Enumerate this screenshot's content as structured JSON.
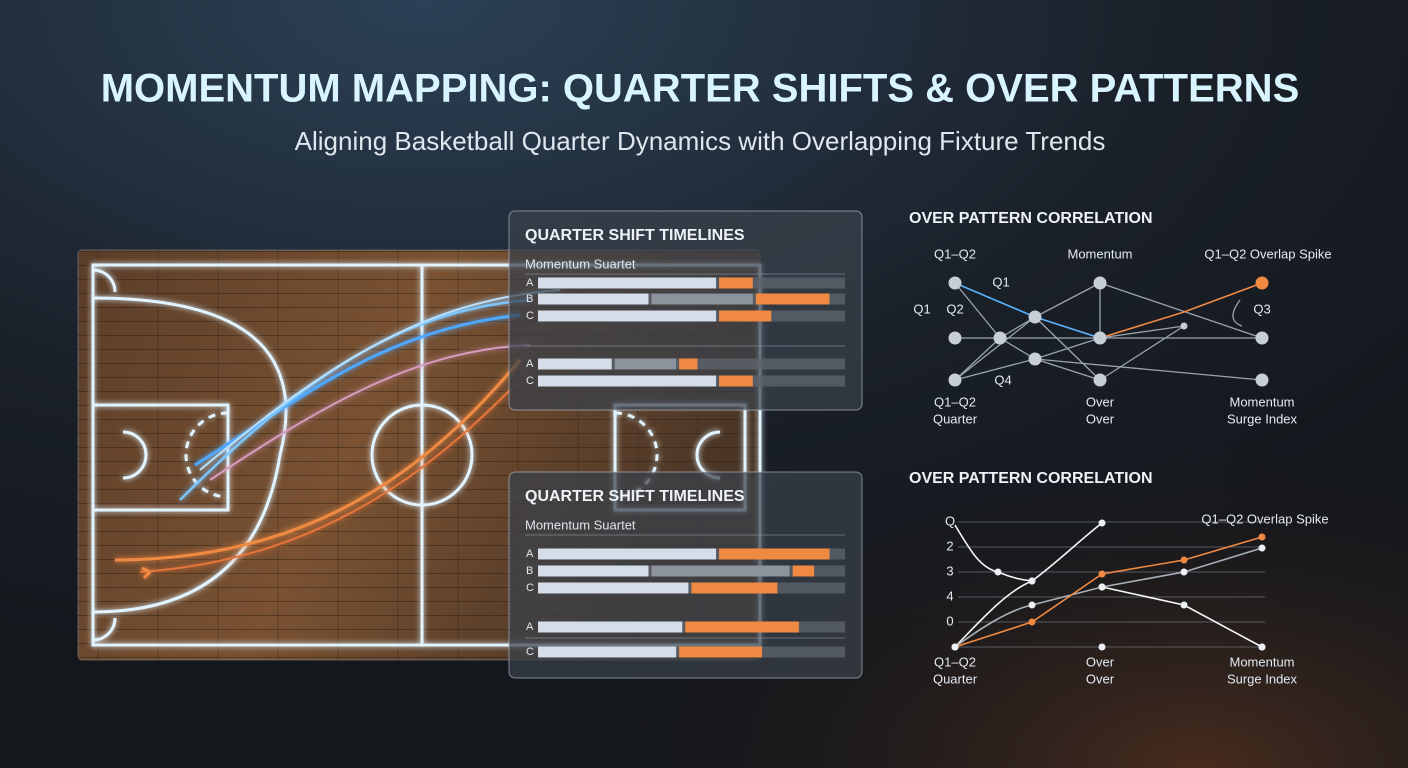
{
  "header": {
    "title": "MOMENTUM MAPPING: QUARTER SHIFTS & OVER PATTERNS",
    "subtitle": "Aligning Basketball Quarter Dynamics with Overlapping Fixture Trends"
  },
  "timelines": [
    {
      "title": "QUARTER SHIFT TIMELINES",
      "subtitle": "Momentum Suartet",
      "groups": [
        [
          {
            "label": "A",
            "light": 58,
            "gray": 0,
            "orange": 11
          },
          {
            "label": "B",
            "light": 36,
            "gray": 33,
            "orange": 24
          },
          {
            "label": "C",
            "light": 58,
            "gray": 0,
            "orange": 17
          }
        ],
        [
          {
            "label": "A",
            "light": 24,
            "gray": 20,
            "orange": 6
          },
          {
            "label": "C",
            "light": 58,
            "gray": 0,
            "orange": 11
          }
        ]
      ]
    },
    {
      "title": "QUARTER SHIFT TIMELINES",
      "subtitle": "Momentum Suartet",
      "groups": [
        [
          {
            "label": "A",
            "light": 58,
            "gray": 0,
            "orange": 36
          },
          {
            "label": "B",
            "light": 36,
            "gray": 45,
            "orange": 7
          },
          {
            "label": "C",
            "light": 49,
            "gray": 0,
            "orange": 28
          }
        ],
        [
          {
            "label": "A",
            "light": 47,
            "gray": 0,
            "orange": 37
          },
          {
            "label": "C",
            "light": 45,
            "gray": 0,
            "orange": 27
          }
        ]
      ]
    }
  ],
  "network": {
    "title": "OVER PATTERN CORRELATION",
    "labels": [
      "Q1–Q2",
      "Momentum",
      "Q1–Q2 Overlap Spike",
      "Q1",
      "Q1",
      "Q2",
      "Q3",
      "Q4",
      "Q1–Q2",
      "Quarter",
      "Over",
      "Over",
      "Momentum",
      "Surge Index"
    ]
  },
  "trend": {
    "title": "OVER PATTERN CORRELATION",
    "axis_labels": [
      "Q",
      "2",
      "3",
      "4",
      "0"
    ],
    "annotation": "Q1–Q2 Overlap Spike",
    "labels": [
      "Q1–Q2",
      "Quarter",
      "Over",
      "Over",
      "Momentum",
      "Surge Index"
    ]
  }
}
